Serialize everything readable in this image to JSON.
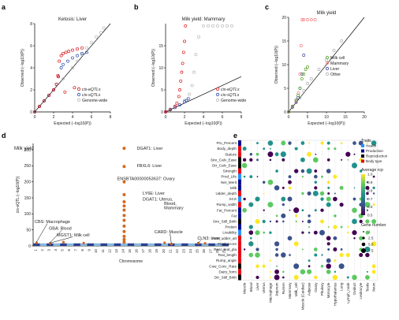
{
  "panel_letters": [
    "a",
    "b",
    "c",
    "d",
    "e"
  ],
  "colors": {
    "cis_eqtls": "#d7191c",
    "cis_sqtls": "#2c4fb3",
    "genome_wide": "#b8b8b8",
    "milk_cell": "#5aa02c",
    "mammary": "#f08080",
    "liver": "#3b4ba8",
    "other": "#b0b0b0",
    "manhattan_hit": "#d2691e",
    "manhattan_a": "#2a3f8f",
    "manhattan_b": "#87b8dc",
    "health": "#1e90ff",
    "production": "#00008b",
    "reproduction": "#000000",
    "body_type": "#e8000b"
  },
  "chart_data": [
    {
      "type": "scatter",
      "title": "Ketosis: Liver",
      "xlabel": "Expected (−log10(P))",
      "ylabel": "Observed (−log10(P))",
      "xlim": [
        0,
        8
      ],
      "ylim": [
        0,
        8
      ],
      "xticks": [
        "0",
        "2",
        "4",
        "6",
        "8"
      ],
      "yticks": [
        "0",
        "2",
        "4",
        "6",
        "8"
      ],
      "legend_position": "bottom-right",
      "series": [
        {
          "name": "cis-eQTLs",
          "x": [
            0,
            0.5,
            1,
            1.5,
            2,
            2.3,
            2.45,
            2.6,
            2.8,
            3,
            3.3,
            3.6,
            4,
            4.5,
            5,
            2.5,
            3.2,
            4.2
          ],
          "y": [
            0,
            0.5,
            1,
            1.5,
            2,
            2.5,
            3.3,
            4.6,
            5.1,
            5.3,
            5.4,
            5.5,
            5.6,
            5.7,
            5.8,
            3.2,
            1.8,
            2.2
          ]
        },
        {
          "name": "cis-sQTLs",
          "x": [
            0,
            0.5,
            1,
            1.5,
            2,
            2.3,
            2.5,
            2.8,
            3,
            3.5,
            4,
            4.5,
            5,
            5.5
          ],
          "y": [
            0,
            0.5,
            1,
            1.5,
            2,
            2.5,
            3.2,
            4,
            4.3,
            4.6,
            4.9,
            5.1,
            5.3,
            5.4
          ]
        },
        {
          "name": "Genome-wide",
          "x": [
            0,
            1,
            2,
            3,
            4,
            4.5,
            5,
            5.5,
            6,
            6.5,
            7,
            7.3
          ],
          "y": [
            0,
            1,
            2,
            3,
            4,
            4.6,
            5.2,
            5.8,
            6.3,
            6.8,
            7.2,
            7.6
          ]
        }
      ]
    },
    {
      "type": "scatter",
      "title": "Milk yield: Mammary",
      "xlabel": "Expected (−log10(P))",
      "ylabel": "Observed (−log10(P))",
      "xlim": [
        0,
        8
      ],
      "ylim": [
        0,
        20
      ],
      "xticks": [
        "0",
        "2",
        "4",
        "6",
        "8"
      ],
      "yticks": [
        "0",
        "5",
        "10",
        "15"
      ],
      "legend_position": "bottom-right",
      "series": [
        {
          "name": "cis-eQTLs",
          "x": [
            0,
            0.5,
            1,
            1.2,
            1.4,
            1.5,
            1.6,
            1.7,
            1.8,
            1.9,
            2,
            2.1
          ],
          "y": [
            0,
            0.6,
            1.3,
            2,
            3.5,
            5,
            7,
            9,
            11,
            13.5,
            16,
            19.5
          ]
        },
        {
          "name": "cis-sQTLs",
          "x": [
            0,
            0.5,
            1,
            1.5,
            2,
            2.2,
            2.4
          ],
          "y": [
            0,
            0.5,
            1,
            1.6,
            2.3,
            2.6,
            3
          ]
        },
        {
          "name": "Genome-wide",
          "x": [
            0,
            1,
            2,
            2.5,
            2.8,
            3,
            3.2,
            3.5,
            4,
            4.5,
            5,
            5.5,
            6,
            6.5,
            7
          ],
          "y": [
            0,
            1.2,
            2.6,
            4,
            6,
            9,
            13,
            17,
            19.5,
            19.5,
            19.5,
            19.5,
            19.5,
            19.5,
            19.5
          ]
        }
      ]
    },
    {
      "type": "scatter",
      "title": "Milk yield",
      "xlabel": "Expected (−log10(P))",
      "ylabel": "Observed (−log10(P))",
      "xlim": [
        0,
        20
      ],
      "ylim": [
        0,
        20
      ],
      "xticks": [
        "0",
        "5",
        "10",
        "15",
        "20"
      ],
      "yticks": [
        "0",
        "5",
        "10",
        "15",
        "20"
      ],
      "legend_position": "middle-right",
      "series": [
        {
          "name": "Milk cell",
          "x": [
            0,
            1,
            2,
            2.5,
            3,
            3.5,
            4,
            4.5,
            5
          ],
          "y": [
            0,
            1.2,
            2.5,
            3.5,
            5,
            7,
            8,
            9,
            9.5
          ]
        },
        {
          "name": "Mammary",
          "x": [
            0,
            1,
            2,
            2.6,
            3,
            3.3,
            3.6,
            4,
            5,
            6,
            7
          ],
          "y": [
            0,
            1.1,
            2.3,
            4,
            8,
            14,
            19.5,
            19.5,
            19.5,
            19.5,
            19.5
          ]
        },
        {
          "name": "Liver",
          "x": [
            0,
            1,
            2,
            2.5,
            3,
            3.5,
            4
          ],
          "y": [
            0,
            1,
            2.1,
            3,
            5,
            8,
            12
          ]
        },
        {
          "name": "Other",
          "x": [
            0,
            1,
            2,
            3,
            4,
            5,
            6,
            8,
            10,
            12,
            14
          ],
          "y": [
            0,
            1,
            2,
            3,
            4.5,
            6,
            7,
            9,
            11,
            13,
            15
          ]
        }
      ]
    },
    {
      "type": "scatter",
      "title": "Milk yield",
      "xlabel": "Chromosome",
      "ylabel": "cis-eQTL (−log10(P))",
      "ylim": [
        0,
        320
      ],
      "yticks": [
        "0",
        "50",
        "100",
        "150",
        "200",
        "250",
        "300"
      ],
      "xtick_labels": [
        "1",
        "2",
        "3",
        "4",
        "5",
        "6",
        "7",
        "8",
        "9",
        "10",
        "11",
        "12",
        "13",
        "14",
        "15",
        "16",
        "17",
        "18",
        "19",
        "20",
        "21",
        "22",
        "23",
        "24",
        "25",
        "26",
        "27",
        "28",
        "29"
      ],
      "xticks_shown": [
        "9",
        "13",
        "14",
        "15",
        "20",
        "21",
        "22",
        "23",
        "28",
        "29"
      ],
      "annotations": [
        {
          "text": "DGAT1: Liver",
          "chrom": 14,
          "y": 300
        },
        {
          "text": "FBXL6: Liver",
          "chrom": 14,
          "y": 245
        },
        {
          "text": "ENSBTA00000053637: Ovary",
          "chrom": 14,
          "y": 200
        },
        {
          "text": "LY6E: Liver",
          "chrom": 14,
          "y": 155
        },
        {
          "text": "DGAT1: Uterus,",
          "chrom": 14,
          "y": 135
        },
        {
          "text": "Blood,",
          "chrom": 14,
          "y": 120
        },
        {
          "text": "Mammary",
          "chrom": 14,
          "y": 105
        },
        {
          "text": "CBS: Macrophage",
          "chrom": 1,
          "y": 70
        },
        {
          "text": "GBA: Blood",
          "chrom": 3,
          "y": 50
        },
        {
          "text": "MGST1: Milk cell",
          "chrom": 3,
          "y": 25
        },
        {
          "text": "CARD: Muscle",
          "chrom": 21,
          "y": 30
        },
        {
          "text": "CLN3: Liver",
          "chrom": 25,
          "y": 15
        }
      ],
      "hits": [
        {
          "chrom": 14,
          "y": 305
        },
        {
          "chrom": 14,
          "y": 248
        },
        {
          "chrom": 14,
          "y": 200
        },
        {
          "chrom": 14,
          "y": 160
        },
        {
          "chrom": 14,
          "y": 138
        },
        {
          "chrom": 14,
          "y": 125
        },
        {
          "chrom": 14,
          "y": 112
        },
        {
          "chrom": 14,
          "y": 95
        },
        {
          "chrom": 14,
          "y": 80
        },
        {
          "chrom": 14,
          "y": 62
        },
        {
          "chrom": 14,
          "y": 45
        },
        {
          "chrom": 14,
          "y": 30
        },
        {
          "chrom": 14,
          "y": 20
        },
        {
          "chrom": 14,
          "y": 12
        }
      ]
    },
    {
      "type": "heatmap",
      "traits": [
        "Pro_Percent",
        "Body_depth",
        "Stature",
        "Sire_Calv_Ease",
        "Dtr_Calv_Ease",
        "Strength",
        "Prod_Life",
        "Net_Merit",
        "Milk",
        "Udder_depth",
        "SCS",
        "Rump_width",
        "Fat_Percent",
        "Fat",
        "Sire_Still_Birth",
        "Protein",
        "Livability",
        "Fore_udder_att",
        "Final_score",
        "Rear_teat_pla",
        "Teat_length",
        "Rump_angle",
        "Cow_Conc_Rate",
        "Dairy_form",
        "Dtr_Still_Birth"
      ],
      "trait_classes": [
        "production",
        "body_type",
        "body_type",
        "reproduction",
        "reproduction",
        "body_type",
        "health",
        "production",
        "production",
        "body_type",
        "health",
        "body_type",
        "production",
        "production",
        "reproduction",
        "production",
        "health",
        "body_type",
        "body_type",
        "body_type",
        "body_type",
        "body_type",
        "reproduction",
        "body_type",
        "reproduction"
      ],
      "tissues": [
        "Muscle",
        "Blood",
        "Liver",
        "Uterus",
        "Macrophage",
        "Jejunum",
        "Rumen",
        "Mammary",
        "Milk_cell",
        "Muscle (Cardiac)",
        "Adipose",
        "Ovary",
        "Pituitary",
        "Monocyte",
        "Hypothalamus",
        "Lung",
        "Lymph_node",
        "Oviduct",
        "Leukocyte",
        "Testis",
        "Ileum"
      ],
      "legend": {
        "traits_title": "Traits",
        "trait_entries": [
          "Health",
          "Production",
          "Reproduction",
          "Body type"
        ],
        "rcp_title": "Average rcp",
        "rcp_ticks": [
          "0.5",
          "0.6",
          "0.7",
          "0.8",
          "0.9",
          "1.0"
        ],
        "rcp_range": [
          0.5,
          1.0
        ],
        "size_title": "Gene number",
        "size_ticks": [
          "1",
          "2.5",
          "5.0",
          "7.5"
        ]
      }
    }
  ]
}
